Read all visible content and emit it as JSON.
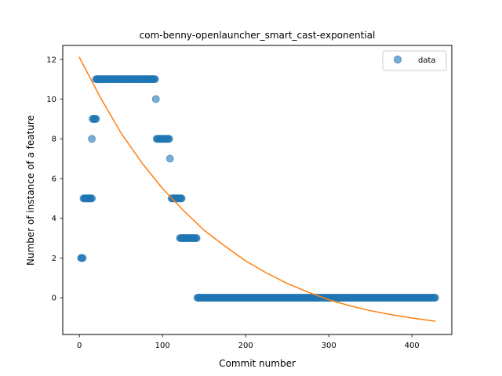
{
  "chart_data": {
    "type": "scatter",
    "title": "com-benny-openlauncher_smart_cast-exponential",
    "xlabel": "Commit number",
    "ylabel": "Number of instance of a feature",
    "xlim": [
      -20,
      448
    ],
    "ylim": [
      -1.85,
      12.7
    ],
    "xticks": [
      0,
      100,
      200,
      300,
      400
    ],
    "yticks": [
      0,
      2,
      4,
      6,
      8,
      10,
      12
    ],
    "grid": false,
    "legend": {
      "position": "top-right",
      "entries": [
        "data"
      ]
    },
    "colors": {
      "data": "#1f77b4",
      "fit": "#ff7f0e"
    },
    "series": [
      {
        "name": "data",
        "kind": "scatter",
        "segments": [
          {
            "x_from": 2,
            "x_to": 2,
            "y": 2
          },
          {
            "x_from": 3,
            "x_to": 4,
            "y": 2
          },
          {
            "x_from": 5,
            "x_to": 15,
            "y": 5
          },
          {
            "x_from": 15,
            "x_to": 15,
            "y": 8
          },
          {
            "x_from": 16,
            "x_to": 20,
            "y": 9
          },
          {
            "x_from": 20,
            "x_to": 91,
            "y": 11
          },
          {
            "x_from": 92,
            "x_to": 92,
            "y": 10
          },
          {
            "x_from": 93,
            "x_to": 108,
            "y": 8
          },
          {
            "x_from": 109,
            "x_to": 109,
            "y": 7
          },
          {
            "x_from": 111,
            "x_to": 123,
            "y": 5
          },
          {
            "x_from": 121,
            "x_to": 141,
            "y": 3
          },
          {
            "x_from": 142,
            "x_to": 428,
            "y": 0
          }
        ]
      },
      {
        "kind": "line",
        "model": "exponential",
        "x_range": [
          0,
          428
        ],
        "points": [
          [
            0,
            12.1
          ],
          [
            25,
            10.1
          ],
          [
            50,
            8.3
          ],
          [
            75,
            6.8
          ],
          [
            100,
            5.5
          ],
          [
            125,
            4.4
          ],
          [
            150,
            3.4
          ],
          [
            175,
            2.6
          ],
          [
            200,
            1.85
          ],
          [
            225,
            1.25
          ],
          [
            250,
            0.72
          ],
          [
            275,
            0.28
          ],
          [
            300,
            -0.1
          ],
          [
            325,
            -0.4
          ],
          [
            350,
            -0.65
          ],
          [
            375,
            -0.85
          ],
          [
            400,
            -1.02
          ],
          [
            428,
            -1.18
          ]
        ]
      }
    ]
  }
}
